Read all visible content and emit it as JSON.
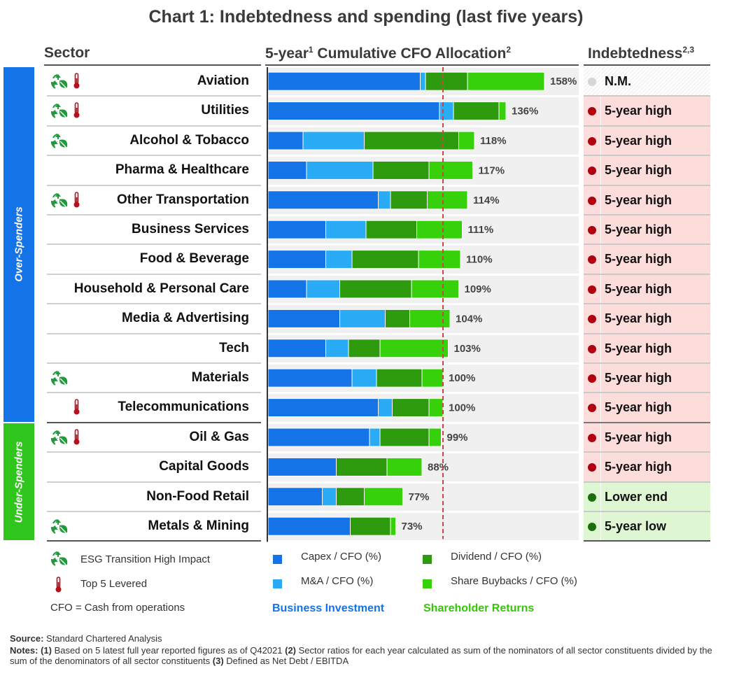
{
  "title": "Chart 1: Indebtedness and spending (last five years)",
  "headers": {
    "sector": "Sector",
    "cfo_pre": "5-year",
    "cfo_sup1": "1",
    "cfo_main": " Cumulative CFO Allocation",
    "cfo_sup2": "2",
    "indebtedness": "Indebtedness",
    "ind_sup": "2,3"
  },
  "groups": [
    {
      "label": "Over-Spenders",
      "rows": 12,
      "color": "#1473e6"
    },
    {
      "label": "Under-Spenders",
      "rows": 4,
      "color": "#2fc51c"
    }
  ],
  "colors": {
    "capex": "#1473e6",
    "ma": "#2aabf5",
    "dividend": "#2e9a0e",
    "buyback": "#37d10b",
    "high_bg": "#fddcdc",
    "low_bg": "#dff6d3",
    "red_dot": "#b00010",
    "green_dot": "#1a6f0c",
    "grey_dot": "#d6d6d6",
    "thermometer": "#b5101c",
    "esg": "#1f9a3b",
    "ref_line": "#cc4444"
  },
  "chart_data": {
    "type": "bar",
    "orientation": "horizontal",
    "stacked": true,
    "title": "5-year Cumulative CFO Allocation",
    "xlim": [
      0,
      180
    ],
    "reference_line": 100,
    "categories": [
      "Aviation",
      "Utilities",
      "Alcohol & Tobacco",
      "Pharma & Healthcare",
      "Other Transportation",
      "Business Services",
      "Food & Beverage",
      "Household & Personal Care",
      "Media & Advertising",
      "Tech",
      "Materials",
      "Telecommunications",
      "Oil & Gas",
      "Capital Goods",
      "Non-Food Retail",
      "Metals & Mining"
    ],
    "series": [
      {
        "name": "Capex / CFO (%)",
        "values": [
          87,
          98,
          20,
          22,
          63,
          33,
          33,
          22,
          41,
          33,
          48,
          63,
          58,
          39,
          31,
          47
        ]
      },
      {
        "name": "M&A / CFO (%)",
        "values": [
          3,
          8,
          35,
          38,
          7,
          23,
          15,
          19,
          26,
          13,
          14,
          8,
          6,
          0,
          8,
          0
        ]
      },
      {
        "name": "Dividend / CFO (%)",
        "values": [
          24,
          26,
          54,
          32,
          21,
          29,
          38,
          41,
          14,
          18,
          26,
          21,
          28,
          29,
          16,
          23
        ]
      },
      {
        "name": "Share Buybacks / CFO (%)",
        "values": [
          44,
          4,
          9,
          25,
          23,
          26,
          24,
          27,
          23,
          39,
          12,
          8,
          7,
          20,
          22,
          3
        ]
      }
    ],
    "totals": [
      "158%",
      "136%",
      "118%",
      "117%",
      "114%",
      "111%",
      "110%",
      "109%",
      "104%",
      "103%",
      "100%",
      "100%",
      "99%",
      "88%",
      "77%",
      "73%"
    ]
  },
  "sectors": [
    {
      "esg": true,
      "levered": true,
      "indebtedness": "N.M.",
      "status": "nm"
    },
    {
      "esg": true,
      "levered": true,
      "indebtedness": "5-year high",
      "status": "high"
    },
    {
      "esg": true,
      "levered": false,
      "indebtedness": "5-year high",
      "status": "high"
    },
    {
      "esg": false,
      "levered": false,
      "indebtedness": "5-year high",
      "status": "high"
    },
    {
      "esg": true,
      "levered": true,
      "indebtedness": "5-year high",
      "status": "high"
    },
    {
      "esg": false,
      "levered": false,
      "indebtedness": "5-year high",
      "status": "high"
    },
    {
      "esg": false,
      "levered": false,
      "indebtedness": "5-year high",
      "status": "high"
    },
    {
      "esg": false,
      "levered": false,
      "indebtedness": "5-year high",
      "status": "high"
    },
    {
      "esg": false,
      "levered": false,
      "indebtedness": "5-year high",
      "status": "high"
    },
    {
      "esg": false,
      "levered": false,
      "indebtedness": "5-year high",
      "status": "high"
    },
    {
      "esg": true,
      "levered": false,
      "indebtedness": "5-year high",
      "status": "high"
    },
    {
      "esg": false,
      "levered": true,
      "indebtedness": "5-year high",
      "status": "high"
    },
    {
      "esg": true,
      "levered": true,
      "indebtedness": "5-year high",
      "status": "high"
    },
    {
      "esg": false,
      "levered": false,
      "indebtedness": "5-year high",
      "status": "high"
    },
    {
      "esg": false,
      "levered": false,
      "indebtedness": "Lower end",
      "status": "low"
    },
    {
      "esg": true,
      "levered": false,
      "indebtedness": "5-year low",
      "status": "low"
    }
  ],
  "legend": {
    "esg": "ESG Transition High Impact",
    "levered": "Top 5 Levered",
    "cfo_def": "CFO = Cash from operations",
    "capex": "Capex / CFO (%)",
    "ma": "M&A / CFO (%)",
    "dividend": "Dividend / CFO (%)",
    "buyback": "Share Buybacks / CFO (%)",
    "business_investment": "Business Investment",
    "shareholder_returns": "Shareholder Returns"
  },
  "notes": {
    "source_label": "Source:",
    "source": " Standard Chartered Analysis",
    "notes_label": "Notes:",
    "n1_label": " (1)",
    "n1": " Based on 5 latest full year reported figures as of Q42021",
    "n2_label": " (2)",
    "n2": " Sector ratios for each year calculated as sum of the nominators of all sector constituents divided by the sum of the denominators of all sector constituents",
    "n3_label": " (3)",
    "n3": " Defined as Net Debt / EBITDA"
  }
}
